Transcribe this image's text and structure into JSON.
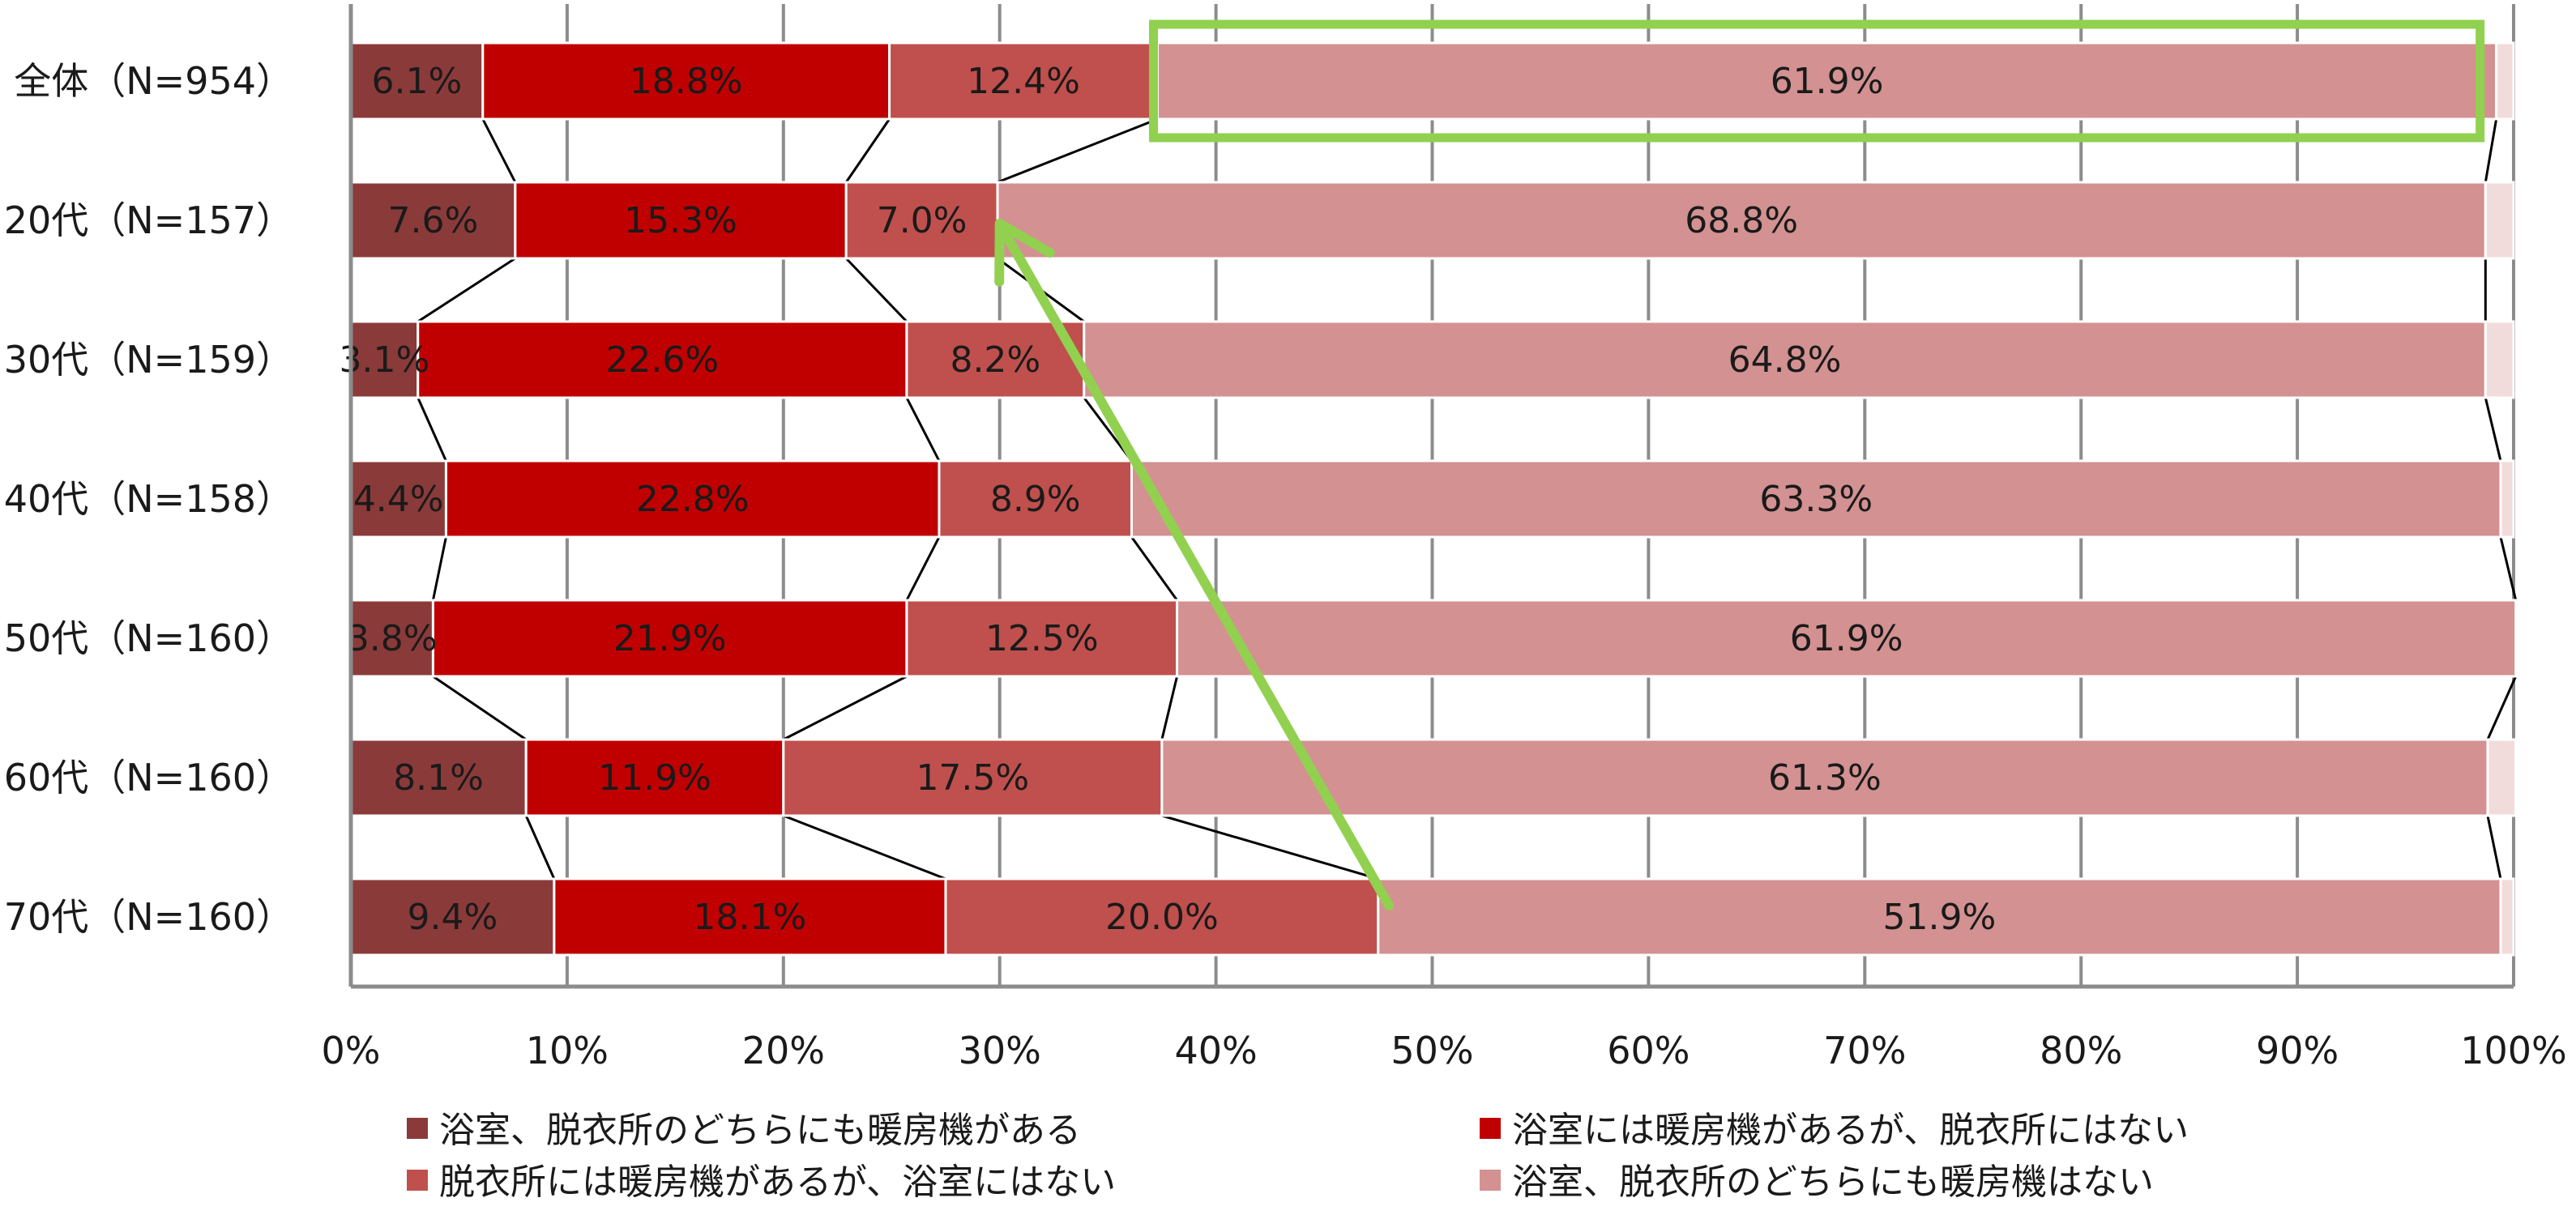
{
  "chart_data": {
    "type": "bar",
    "orientation": "horizontal",
    "stacked": "percent",
    "categories": [
      "全体（N=954）",
      "20代（N=157）",
      "30代（N=159）",
      "40代（N=158）",
      "50代（N=160）",
      "60代（N=160）",
      "70代（N=160）"
    ],
    "series": [
      {
        "name": "浴室、脱衣所のどちらにも暖房機がある",
        "color": "#8b3a3a",
        "values": [
          6.1,
          7.6,
          3.1,
          4.4,
          3.8,
          8.1,
          9.4
        ],
        "labels": [
          "6.1%",
          "7.6%",
          "3.1%",
          "4.4%",
          "3.8%",
          "8.1%",
          "9.4%"
        ]
      },
      {
        "name": "浴室には暖房機があるが、脱衣所にはない",
        "color": "#c00000",
        "values": [
          18.8,
          15.3,
          22.6,
          22.8,
          21.9,
          11.9,
          18.1
        ],
        "labels": [
          "18.8%",
          "15.3%",
          "22.6%",
          "22.8%",
          "21.9%",
          "11.9%",
          "18.1%"
        ]
      },
      {
        "name": "脱衣所には暖房機があるが、浴室にはない",
        "color": "#c0504d",
        "values": [
          12.4,
          7.0,
          8.2,
          8.9,
          12.5,
          17.5,
          20.0
        ],
        "labels": [
          "12.4%",
          "7.0%",
          "8.2%",
          "8.9%",
          "12.5%",
          "17.5%",
          "20.0%"
        ]
      },
      {
        "name": "浴室、脱衣所のどちらにも暖房機はない",
        "color": "#d39191",
        "values": [
          61.9,
          68.8,
          64.8,
          63.3,
          61.9,
          61.3,
          51.9
        ],
        "labels": [
          "61.9%",
          "68.8%",
          "64.8%",
          "63.3%",
          "61.9%",
          "61.3%",
          "51.9%"
        ]
      },
      {
        "name": "",
        "color": "#f2dcdb",
        "values": [
          0.8,
          1.3,
          1.3,
          0.6,
          0.0,
          1.3,
          0.6
        ],
        "labels": []
      }
    ],
    "xlim": [
      0,
      100
    ],
    "xticks": [
      "0%",
      "10%",
      "20%",
      "30%",
      "40%",
      "50%",
      "60%",
      "70%",
      "80%",
      "90%",
      "100%"
    ],
    "grid": true,
    "legend_position": "bottom",
    "annotations": {
      "highlight_box": {
        "category_index": 0,
        "series_index": 3,
        "color": "#92d050"
      },
      "arrow": {
        "from": {
          "category_index": 6,
          "value": 48.0
        },
        "to": {
          "category_index": 1,
          "value": 30.0
        },
        "color": "#92d050"
      }
    }
  }
}
